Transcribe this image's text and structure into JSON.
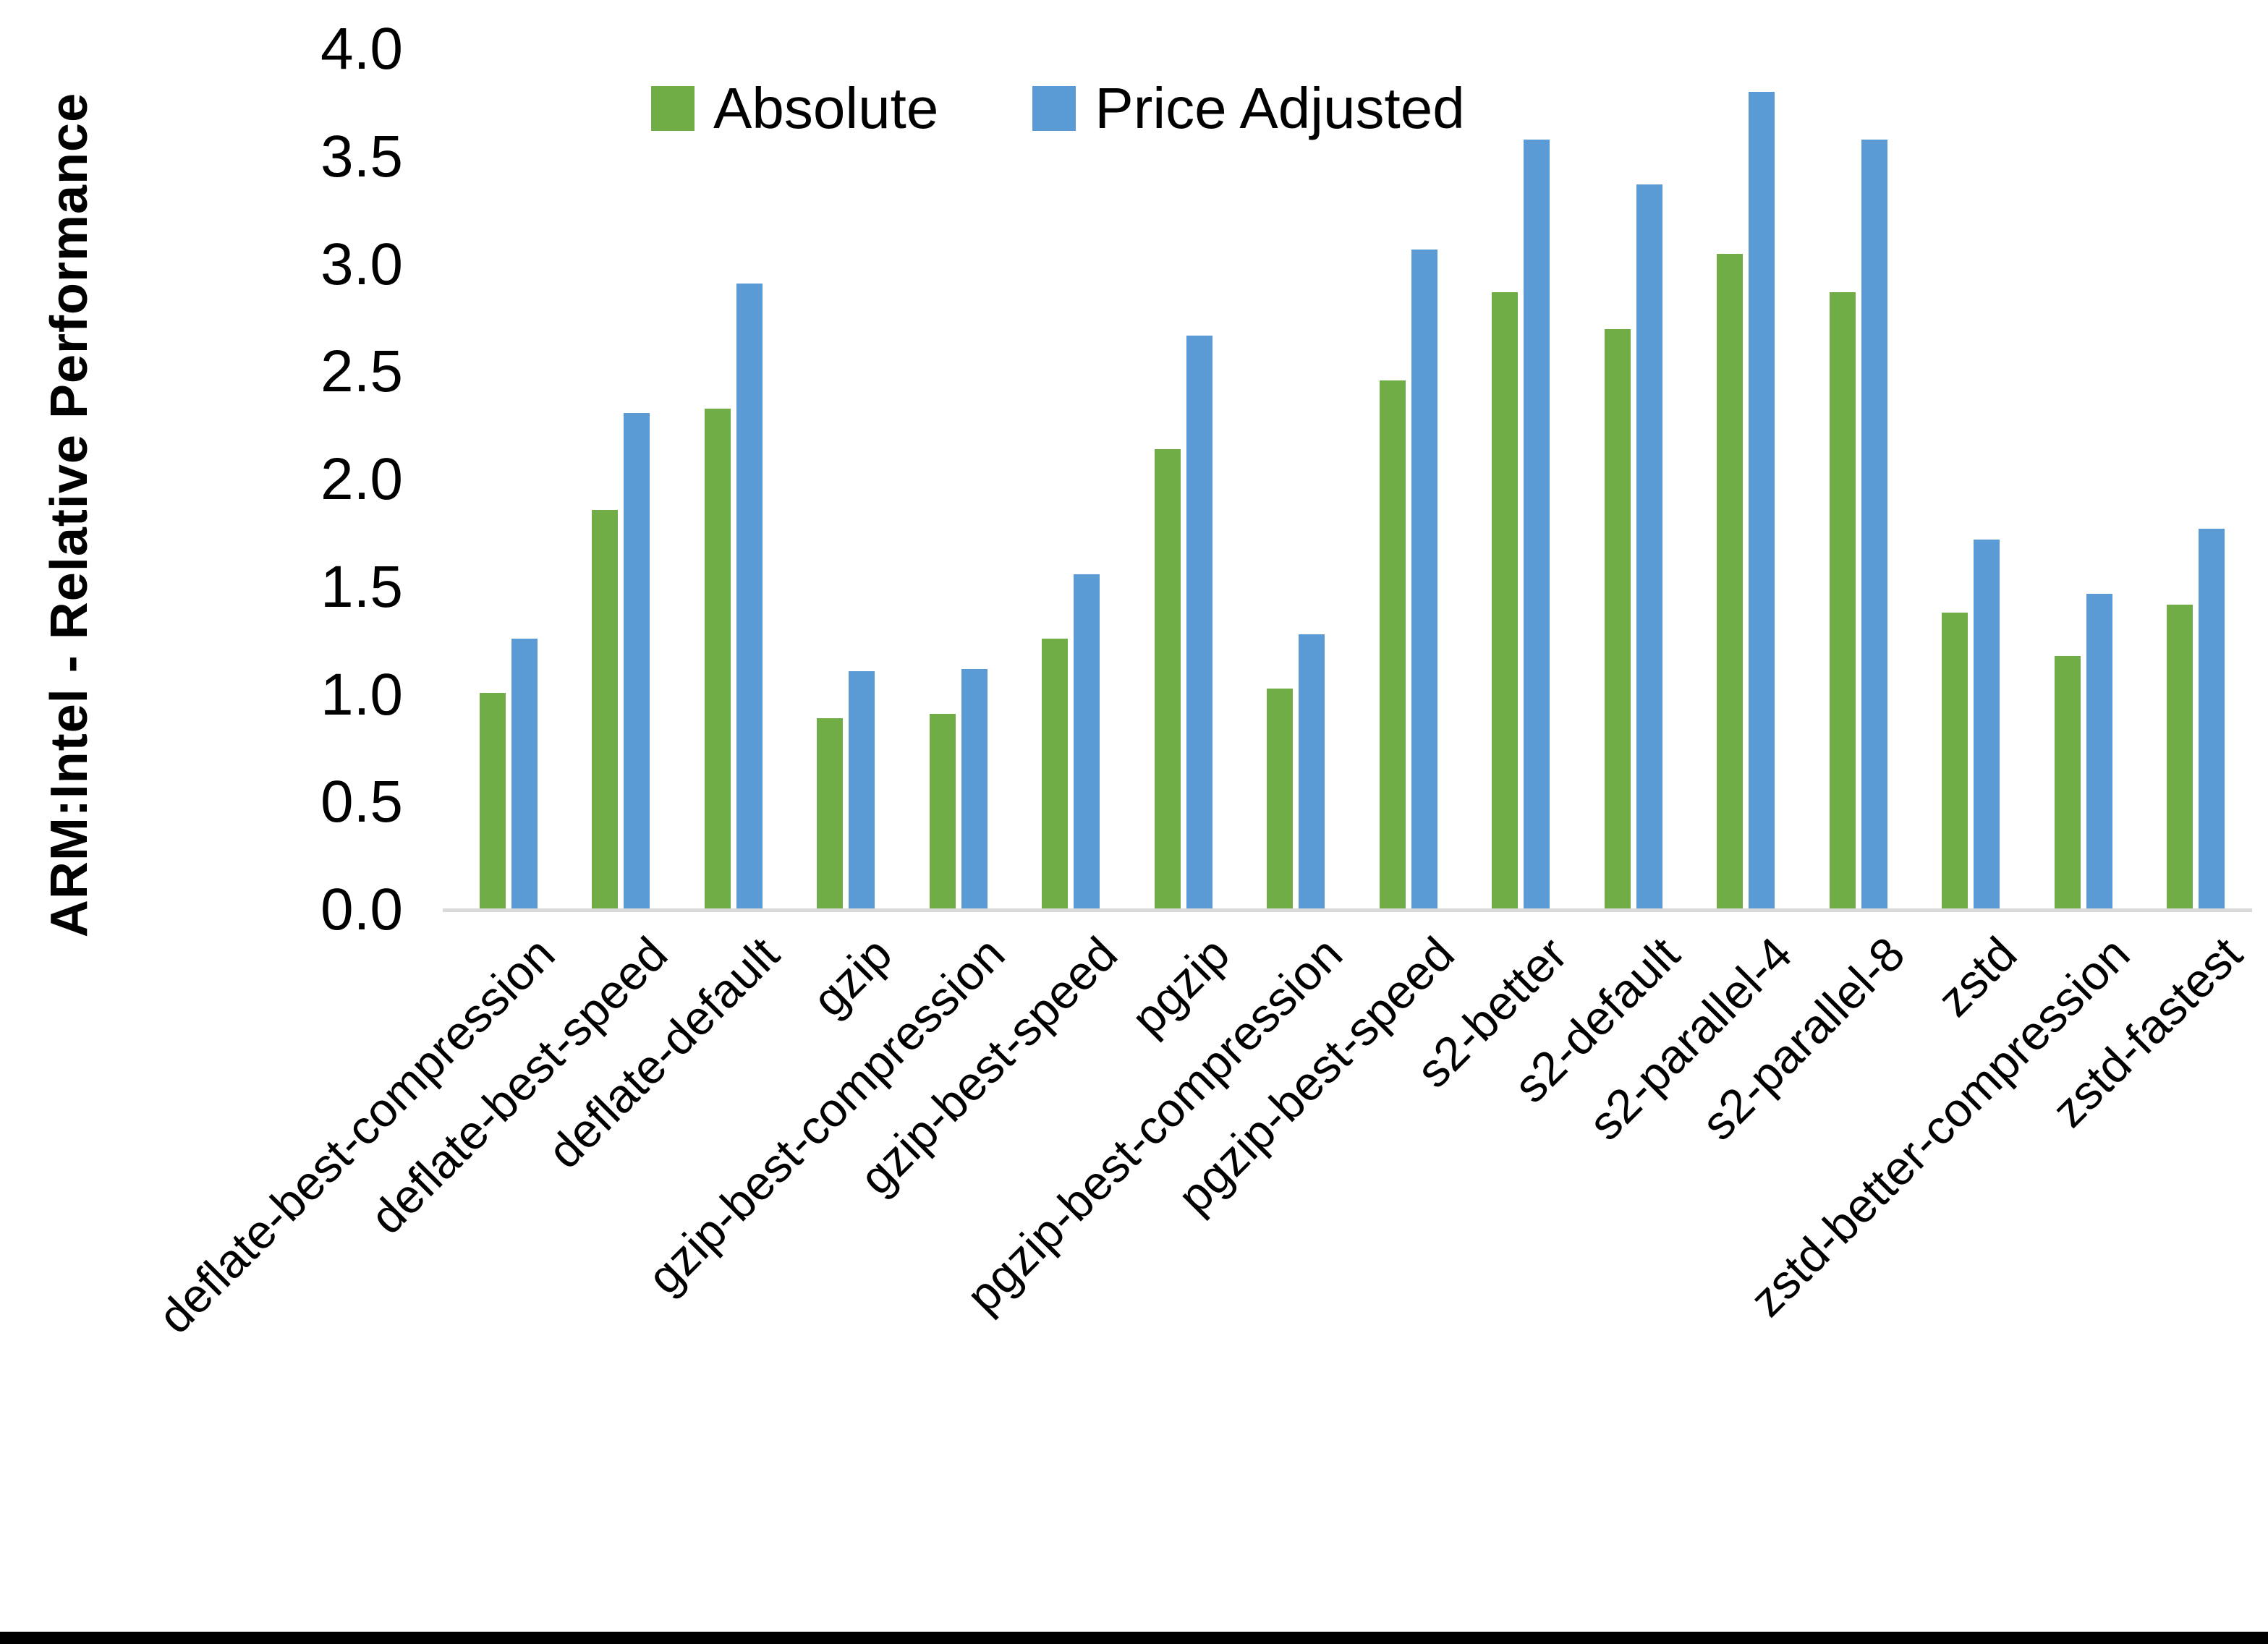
{
  "chart_data": {
    "type": "bar",
    "title": "",
    "xlabel": "",
    "ylabel": "ARM:Intel - Relative Performance",
    "ylim": [
      0.0,
      4.0
    ],
    "ytick_step": 0.5,
    "yticks": [
      "0.0",
      "0.5",
      "1.0",
      "1.5",
      "2.0",
      "2.5",
      "3.0",
      "3.5",
      "4.0"
    ],
    "grid": false,
    "legend_position": "top-center",
    "categories": [
      "deflate-best-compression",
      "deflate-best-speed",
      "deflate-default",
      "gzip",
      "gzip-best-compression",
      "gzip-best-speed",
      "pgzip",
      "pgzip-best-compression",
      "pgzip-best-speed",
      "s2-better",
      "s2-default",
      "s2-parallel-4",
      "s2-parallel-8",
      "zstd",
      "zstd-better-compression",
      "zstd-fastest"
    ],
    "series": [
      {
        "name": "Absolute",
        "color": "#70AD47",
        "values": [
          1.01,
          1.86,
          2.33,
          0.89,
          0.91,
          1.26,
          2.14,
          1.03,
          2.46,
          2.87,
          2.7,
          3.05,
          2.87,
          1.38,
          1.18,
          1.42
        ]
      },
      {
        "name": "Price Adjusted",
        "color": "#5B9BD5",
        "values": [
          1.26,
          2.31,
          2.91,
          1.11,
          1.12,
          1.56,
          2.67,
          1.28,
          3.07,
          3.58,
          3.37,
          3.8,
          3.58,
          1.72,
          1.47,
          1.77
        ]
      }
    ]
  },
  "colors": {
    "background": "#FFFFFF",
    "axis_line": "#D9D9D9",
    "text": "#000000",
    "bottom_border": "#000000"
  }
}
